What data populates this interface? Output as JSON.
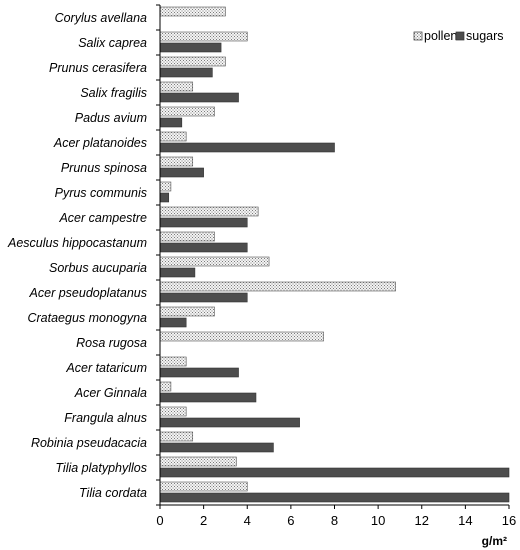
{
  "chart_data": {
    "type": "bar",
    "orientation": "horizontal",
    "categories": [
      "Corylus avellana",
      "Salix caprea",
      "Prunus cerasifera",
      "Salix fragilis",
      "Padus avium",
      "Acer platanoides",
      "Prunus spinosa",
      "Pyrus communis",
      "Acer campestre",
      "Aesculus hippocastanum",
      "Sorbus aucuparia",
      "Acer pseudoplatanus",
      "Crataegus monogyna",
      "Rosa rugosa",
      "Acer tataricum",
      "Acer Ginnala",
      "Frangula alnus",
      "Robinia pseudacacia",
      "Tilia platyphyllos",
      "Tilia cordata"
    ],
    "series": [
      {
        "name": "pollen",
        "color": "#d9d9d9",
        "pattern": "dotted",
        "values": [
          3.0,
          4.0,
          3.0,
          1.5,
          2.5,
          1.2,
          1.5,
          0.5,
          4.5,
          2.5,
          5.0,
          10.8,
          2.5,
          7.5,
          1.2,
          0.5,
          1.2,
          1.5,
          3.5,
          4.0
        ]
      },
      {
        "name": "sugars",
        "color": "#4d4d4d",
        "pattern": "solid",
        "values": [
          null,
          2.8,
          2.4,
          3.6,
          1.0,
          8.0,
          2.0,
          0.4,
          4.0,
          4.0,
          1.6,
          4.0,
          1.2,
          null,
          3.6,
          4.4,
          6.4,
          5.2,
          16.0,
          16.0
        ]
      }
    ],
    "x_ticks": [
      "0",
      "2",
      "4",
      "6",
      "8",
      "10",
      "12",
      "14",
      "16"
    ],
    "xlim": [
      0,
      16
    ],
    "xlabel": "g/m²",
    "legend_position": "top-right",
    "grid": false
  }
}
